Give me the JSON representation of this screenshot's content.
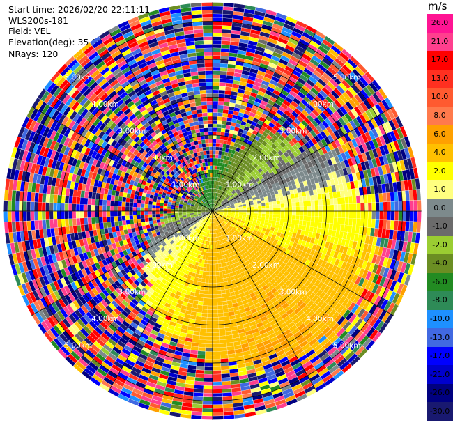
{
  "header": {
    "start_time": "Start time: 2026/02/20 22:11:11",
    "instrument": "WLS200s-181",
    "field": "Field: VEL",
    "elevation": "Elevation(deg): 35.00",
    "nrays": "NRays: 120"
  },
  "colorbar": {
    "unit": "m/s",
    "ticks": [
      "26.0",
      "21.0",
      "17.0",
      "13.0",
      "10.0",
      "8.0",
      "6.0",
      "4.0",
      "2.0",
      "1.0",
      "0.0",
      "-1.0",
      "-2.0",
      "-4.0",
      "-6.0",
      "-8.0",
      "-10.0",
      "-13.0",
      "-17.0",
      "-21.0",
      "-26.0",
      "-30.0"
    ],
    "colors": [
      "#ff1493",
      "#ff3f8e",
      "#ff0000",
      "#ff3020",
      "#ff5a30",
      "#ff7a4c",
      "#ffa000",
      "#ffc000",
      "#ffff00",
      "#ffff80",
      "#7d8a8c",
      "#6b6b6b",
      "#9acd32",
      "#6b8e23",
      "#228b22",
      "#2e8b57",
      "#1e90ff",
      "#4169e1",
      "#0000ff",
      "#0000cd",
      "#000080",
      "#191970"
    ]
  },
  "chart_data": {
    "type": "heatmap",
    "subtype": "PPI polar scan",
    "field": "VEL",
    "units": "m/s",
    "nrays": 120,
    "elevation_deg": 35.0,
    "range_rings_km": [
      1,
      2,
      3,
      4,
      5
    ],
    "range_labels": [
      "1.00km",
      "2.00km",
      "3.00km",
      "4.00km",
      "5.00km"
    ],
    "max_range_km": 5.5,
    "spokes_deg": [
      0,
      30,
      60,
      90,
      120,
      150,
      180,
      210,
      240,
      270,
      300,
      330
    ],
    "value_range": [
      -30,
      26
    ]
  }
}
